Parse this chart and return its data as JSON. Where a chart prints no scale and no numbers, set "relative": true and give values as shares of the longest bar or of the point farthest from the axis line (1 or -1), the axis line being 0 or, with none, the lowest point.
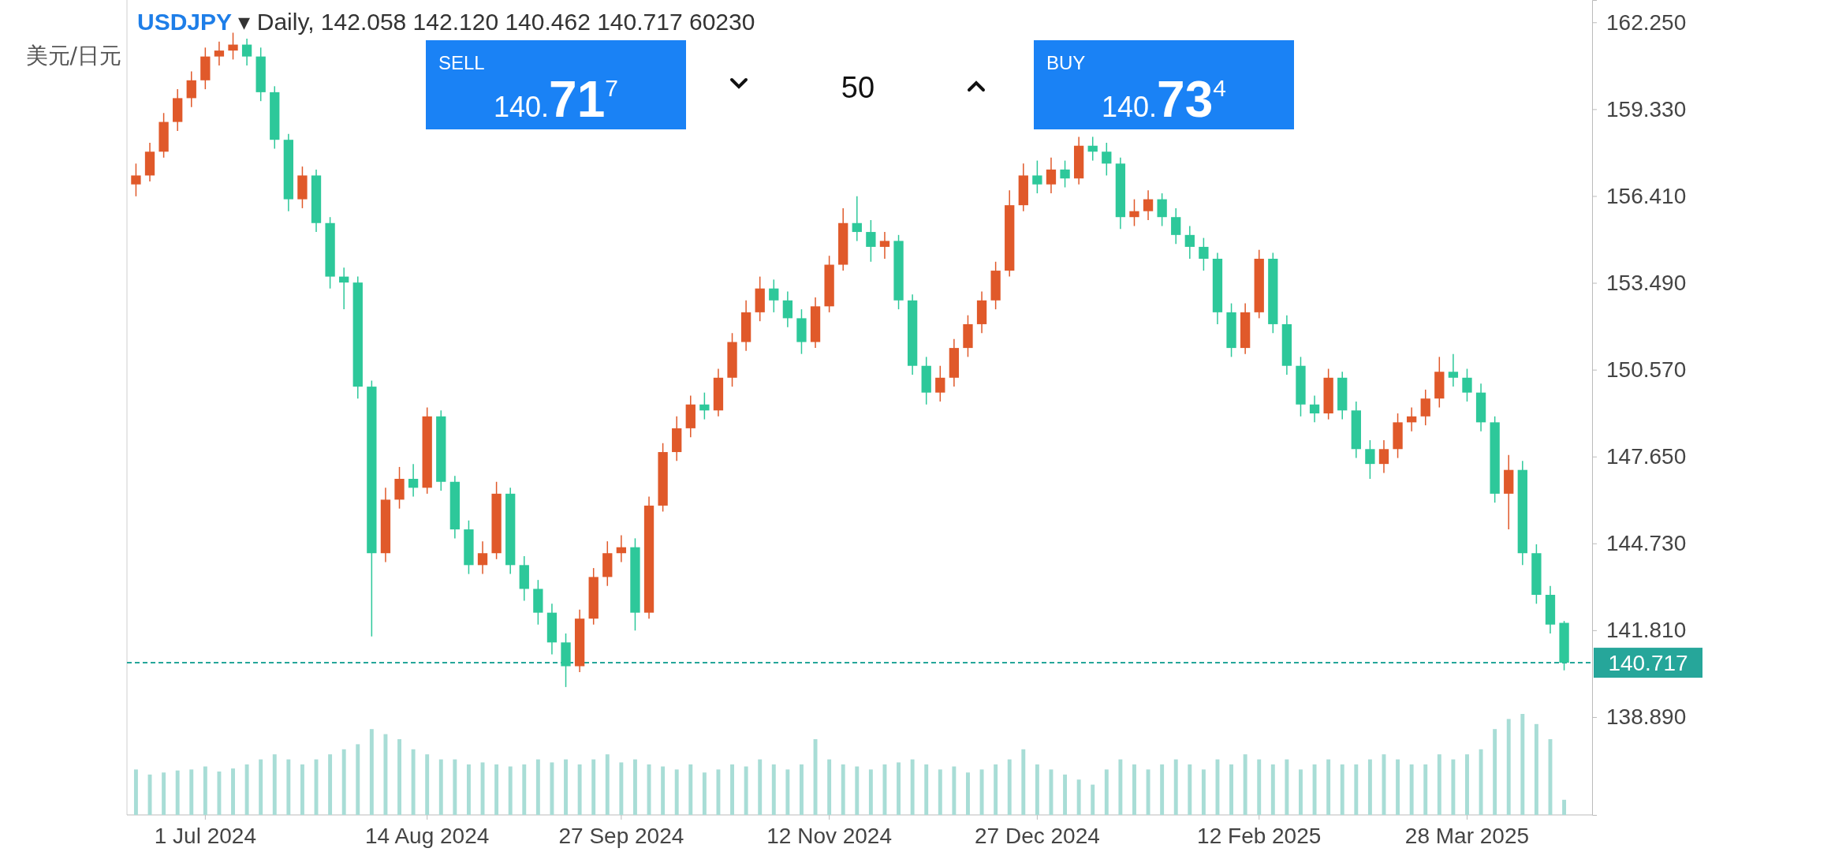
{
  "chart_data": [
    {
      "type": "candlestick",
      "title": "USDJPY ▾ Daily, 142.058 142.120 140.462 140.717 60230",
      "subtitle": "美元/日元",
      "categories": [
        null,
        null,
        null,
        null,
        null,
        "1 Jul 2024",
        null,
        null,
        null,
        null,
        null,
        null,
        null,
        null,
        null,
        null,
        null,
        null,
        null,
        null,
        null,
        "14 Aug 2024",
        null,
        null,
        null,
        null,
        null,
        null,
        null,
        null,
        null,
        null,
        null,
        null,
        null,
        "27 Sep 2024",
        null,
        null,
        null,
        null,
        null,
        null,
        null,
        null,
        null,
        null,
        null,
        null,
        null,
        null,
        "12 Nov 2024",
        null,
        null,
        null,
        null,
        null,
        null,
        null,
        null,
        null,
        null,
        null,
        null,
        null,
        null,
        "27 Dec 2024",
        null,
        null,
        null,
        null,
        null,
        null,
        null,
        null,
        null,
        null,
        null,
        null,
        null,
        null,
        null,
        "12 Feb 2025",
        null,
        null,
        null,
        null,
        null,
        null,
        null,
        null,
        null,
        null,
        null,
        null,
        null,
        null,
        "28 Mar 2025",
        null,
        null,
        null,
        null,
        null,
        null,
        null
      ],
      "ohlc": [
        [
          156.8,
          157.5,
          156.4,
          157.1
        ],
        [
          157.1,
          158.2,
          156.9,
          157.9
        ],
        [
          157.9,
          159.2,
          157.7,
          158.9
        ],
        [
          158.9,
          160.0,
          158.6,
          159.7
        ],
        [
          159.7,
          160.6,
          159.4,
          160.3
        ],
        [
          160.3,
          161.4,
          160.0,
          161.1
        ],
        [
          161.1,
          161.6,
          160.8,
          161.3
        ],
        [
          161.3,
          161.9,
          161.0,
          161.5
        ],
        [
          161.5,
          161.7,
          160.8,
          161.1
        ],
        [
          161.1,
          161.4,
          159.6,
          159.9
        ],
        [
          159.9,
          160.1,
          158.0,
          158.3
        ],
        [
          158.3,
          158.5,
          155.9,
          156.3
        ],
        [
          156.3,
          157.4,
          156.0,
          157.1
        ],
        [
          157.1,
          157.3,
          155.2,
          155.5
        ],
        [
          155.5,
          155.7,
          153.3,
          153.7
        ],
        [
          153.7,
          154.0,
          152.6,
          153.5
        ],
        [
          153.5,
          153.7,
          149.6,
          150.0
        ],
        [
          150.0,
          150.2,
          141.6,
          144.4
        ],
        [
          144.4,
          146.6,
          144.1,
          146.2
        ],
        [
          146.2,
          147.3,
          145.9,
          146.9
        ],
        [
          146.9,
          147.4,
          146.3,
          146.6
        ],
        [
          146.6,
          149.3,
          146.4,
          149.0
        ],
        [
          149.0,
          149.2,
          146.5,
          146.8
        ],
        [
          146.8,
          147.0,
          144.9,
          145.2
        ],
        [
          145.2,
          145.5,
          143.7,
          144.0
        ],
        [
          144.0,
          144.8,
          143.7,
          144.4
        ],
        [
          144.4,
          146.8,
          144.2,
          146.4
        ],
        [
          146.4,
          146.6,
          143.7,
          144.0
        ],
        [
          144.0,
          144.3,
          142.8,
          143.2
        ],
        [
          143.2,
          143.5,
          142.0,
          142.4
        ],
        [
          142.4,
          142.7,
          141.0,
          141.4
        ],
        [
          141.4,
          141.7,
          139.9,
          140.6
        ],
        [
          140.6,
          142.5,
          140.4,
          142.2
        ],
        [
          142.2,
          143.9,
          142.0,
          143.6
        ],
        [
          143.6,
          144.8,
          143.3,
          144.4
        ],
        [
          144.4,
          145.0,
          144.1,
          144.6
        ],
        [
          144.6,
          144.9,
          141.8,
          142.4
        ],
        [
          142.4,
          146.3,
          142.2,
          146.0
        ],
        [
          146.0,
          148.1,
          145.8,
          147.8
        ],
        [
          147.8,
          149.0,
          147.5,
          148.6
        ],
        [
          148.6,
          149.7,
          148.3,
          149.4
        ],
        [
          149.4,
          149.8,
          148.9,
          149.2
        ],
        [
          149.2,
          150.6,
          149.0,
          150.3
        ],
        [
          150.3,
          151.8,
          150.0,
          151.5
        ],
        [
          151.5,
          152.9,
          151.2,
          152.5
        ],
        [
          152.5,
          153.7,
          152.2,
          153.3
        ],
        [
          153.3,
          153.6,
          152.5,
          152.9
        ],
        [
          152.9,
          153.2,
          152.0,
          152.3
        ],
        [
          152.3,
          152.6,
          151.1,
          151.5
        ],
        [
          151.5,
          153.0,
          151.3,
          152.7
        ],
        [
          152.7,
          154.4,
          152.5,
          154.1
        ],
        [
          154.1,
          156.0,
          153.9,
          155.5
        ],
        [
          155.5,
          156.4,
          154.9,
          155.2
        ],
        [
          155.2,
          155.6,
          154.2,
          154.7
        ],
        [
          154.7,
          155.2,
          154.3,
          154.9
        ],
        [
          154.9,
          155.1,
          152.6,
          152.9
        ],
        [
          152.9,
          153.1,
          150.4,
          150.7
        ],
        [
          150.7,
          151.0,
          149.4,
          149.8
        ],
        [
          149.8,
          150.7,
          149.5,
          150.3
        ],
        [
          150.3,
          151.6,
          150.0,
          151.3
        ],
        [
          151.3,
          152.4,
          151.0,
          152.1
        ],
        [
          152.1,
          153.2,
          151.8,
          152.9
        ],
        [
          152.9,
          154.2,
          152.6,
          153.9
        ],
        [
          153.9,
          156.6,
          153.7,
          156.1
        ],
        [
          156.1,
          157.5,
          155.9,
          157.1
        ],
        [
          157.1,
          157.6,
          156.5,
          156.8
        ],
        [
          156.8,
          157.7,
          156.5,
          157.3
        ],
        [
          157.3,
          157.6,
          156.7,
          157.0
        ],
        [
          157.0,
          158.4,
          156.8,
          158.1
        ],
        [
          158.1,
          158.4,
          157.6,
          157.9
        ],
        [
          157.9,
          158.2,
          157.1,
          157.5
        ],
        [
          157.5,
          157.7,
          155.3,
          155.7
        ],
        [
          155.7,
          156.3,
          155.4,
          155.9
        ],
        [
          155.9,
          156.6,
          155.6,
          156.3
        ],
        [
          156.3,
          156.5,
          155.4,
          155.7
        ],
        [
          155.7,
          156.0,
          154.8,
          155.1
        ],
        [
          155.1,
          155.4,
          154.3,
          154.7
        ],
        [
          154.7,
          155.0,
          153.9,
          154.3
        ],
        [
          154.3,
          154.5,
          152.1,
          152.5
        ],
        [
          152.5,
          152.8,
          151.0,
          151.3
        ],
        [
          151.3,
          152.8,
          151.1,
          152.5
        ],
        [
          152.5,
          154.6,
          152.3,
          154.3
        ],
        [
          154.3,
          154.5,
          151.8,
          152.1
        ],
        [
          152.1,
          152.4,
          150.4,
          150.7
        ],
        [
          150.7,
          151.0,
          149.0,
          149.4
        ],
        [
          149.4,
          149.7,
          148.8,
          149.1
        ],
        [
          149.1,
          150.6,
          148.9,
          150.3
        ],
        [
          150.3,
          150.5,
          148.9,
          149.2
        ],
        [
          149.2,
          149.5,
          147.6,
          147.9
        ],
        [
          147.9,
          148.2,
          146.9,
          147.4
        ],
        [
          147.4,
          148.2,
          147.1,
          147.9
        ],
        [
          147.9,
          149.1,
          147.6,
          148.8
        ],
        [
          148.8,
          149.3,
          148.5,
          149.0
        ],
        [
          149.0,
          149.9,
          148.7,
          149.6
        ],
        [
          149.6,
          151.0,
          149.3,
          150.5
        ],
        [
          150.5,
          151.1,
          150.0,
          150.3
        ],
        [
          150.3,
          150.6,
          149.5,
          149.8
        ],
        [
          149.8,
          150.1,
          148.5,
          148.8
        ],
        [
          148.8,
          149.0,
          146.1,
          146.4
        ],
        [
          146.4,
          147.7,
          145.2,
          147.2
        ],
        [
          147.2,
          147.5,
          144.0,
          144.4
        ],
        [
          144.4,
          144.7,
          142.7,
          143.0
        ],
        [
          143.0,
          143.3,
          141.7,
          142.0
        ],
        [
          142.058,
          142.12,
          140.462,
          140.717
        ]
      ],
      "colors": [
        "#e0592a",
        "#e0592a",
        "#e0592a",
        "#e0592a",
        "#e0592a",
        "#e0592a",
        "#e0592a",
        "#e0592a",
        "#2dc89a",
        "#2dc89a",
        "#2dc89a",
        "#2dc89a",
        "#e0592a",
        "#2dc89a",
        "#2dc89a",
        "#2dc89a",
        "#2dc89a",
        "#2dc89a",
        "#e0592a",
        "#e0592a",
        "#2dc89a",
        "#e0592a",
        "#2dc89a",
        "#2dc89a",
        "#2dc89a",
        "#e0592a",
        "#e0592a",
        "#2dc89a",
        "#2dc89a",
        "#2dc89a",
        "#2dc89a",
        "#2dc89a",
        "#e0592a",
        "#e0592a",
        "#e0592a",
        "#e0592a",
        "#2dc89a",
        "#e0592a",
        "#e0592a",
        "#e0592a",
        "#e0592a",
        "#2dc89a",
        "#e0592a",
        "#e0592a",
        "#e0592a",
        "#e0592a",
        "#2dc89a",
        "#2dc89a",
        "#2dc89a",
        "#e0592a",
        "#e0592a",
        "#e0592a",
        "#2dc89a",
        "#2dc89a",
        "#e0592a",
        "#2dc89a",
        "#2dc89a",
        "#2dc89a",
        "#e0592a",
        "#e0592a",
        "#e0592a",
        "#e0592a",
        "#e0592a",
        "#e0592a",
        "#e0592a",
        "#2dc89a",
        "#e0592a",
        "#2dc89a",
        "#e0592a",
        "#2dc89a",
        "#2dc89a",
        "#2dc89a",
        "#e0592a",
        "#e0592a",
        "#2dc89a",
        "#2dc89a",
        "#2dc89a",
        "#2dc89a",
        "#2dc89a",
        "#2dc89a",
        "#e0592a",
        "#e0592a",
        "#2dc89a",
        "#2dc89a",
        "#2dc89a",
        "#2dc89a",
        "#e0592a",
        "#2dc89a",
        "#2dc89a",
        "#2dc89a",
        "#e0592a",
        "#e0592a",
        "#e0592a",
        "#e0592a",
        "#e0592a",
        "#2dc89a",
        "#2dc89a",
        "#2dc89a",
        "#2dc89a",
        "#e0592a",
        "#2dc89a",
        "#2dc89a",
        "#2dc89a",
        "#2dc89a"
      ],
      "ylim": [
        135.6,
        163.0
      ],
      "yticks": [
        {
          "value": 138.89,
          "label": "138.890"
        },
        {
          "value": 141.81,
          "label": "141.810"
        },
        {
          "value": 144.73,
          "label": "144.730"
        },
        {
          "value": 147.65,
          "label": "147.650"
        },
        {
          "value": 150.57,
          "label": "150.570"
        },
        {
          "value": 153.49,
          "label": "153.490"
        },
        {
          "value": 156.41,
          "label": "156.410"
        },
        {
          "value": 159.33,
          "label": "159.330"
        },
        {
          "value": 162.25,
          "label": "162.250"
        }
      ],
      "ref_lines": [
        {
          "axis": "y",
          "value": 140.717,
          "label": "140.717",
          "color": "#26a69a",
          "line_style": "dashed"
        }
      ],
      "annotations": [
        "SELL",
        "140.717",
        "50",
        "BUY",
        "140.734"
      ]
    },
    {
      "type": "bar",
      "relative": true,
      "color": "#a8ddd6",
      "categories": [
        null,
        null,
        null,
        null,
        null,
        null,
        null,
        null,
        null,
        null,
        null,
        null,
        null,
        null,
        null,
        null,
        null,
        null,
        null,
        null,
        null,
        null,
        null,
        null,
        null,
        null,
        null,
        null,
        null,
        null,
        null,
        null,
        null,
        null,
        null,
        null,
        null,
        null,
        null,
        null,
        null,
        null,
        null,
        null,
        null,
        null,
        null,
        null,
        null,
        null,
        null,
        null,
        null,
        null,
        null,
        null,
        null,
        null,
        null,
        null,
        null,
        null,
        null,
        null,
        null,
        null,
        null,
        null,
        null,
        null,
        null,
        null,
        null,
        null,
        null,
        null,
        null,
        null,
        null,
        null,
        null,
        null,
        null,
        null,
        null,
        null,
        null,
        null,
        null,
        null,
        null,
        null,
        null,
        null,
        null,
        null,
        null,
        null,
        null,
        null,
        null,
        null,
        null,
        null
      ],
      "values": [
        0.45,
        0.4,
        0.42,
        0.44,
        0.45,
        0.48,
        0.43,
        0.46,
        0.5,
        0.55,
        0.6,
        0.55,
        0.5,
        0.55,
        0.6,
        0.65,
        0.7,
        0.85,
        0.8,
        0.75,
        0.65,
        0.6,
        0.55,
        0.55,
        0.5,
        0.52,
        0.5,
        0.48,
        0.5,
        0.55,
        0.52,
        0.55,
        0.5,
        0.55,
        0.6,
        0.52,
        0.55,
        0.5,
        0.48,
        0.45,
        0.5,
        0.42,
        0.45,
        0.5,
        0.48,
        0.55,
        0.5,
        0.45,
        0.5,
        0.75,
        0.55,
        0.5,
        0.48,
        0.45,
        0.5,
        0.52,
        0.55,
        0.5,
        0.45,
        0.48,
        0.42,
        0.45,
        0.5,
        0.55,
        0.65,
        0.5,
        0.45,
        0.4,
        0.35,
        0.3,
        0.45,
        0.55,
        0.5,
        0.45,
        0.5,
        0.55,
        0.5,
        0.45,
        0.55,
        0.5,
        0.6,
        0.55,
        0.5,
        0.55,
        0.45,
        0.5,
        0.55,
        0.5,
        0.5,
        0.55,
        0.6,
        0.55,
        0.5,
        0.5,
        0.6,
        0.55,
        0.6,
        0.65,
        0.85,
        0.95,
        1.0,
        0.9,
        0.75,
        0.15
      ]
    }
  ]
}
